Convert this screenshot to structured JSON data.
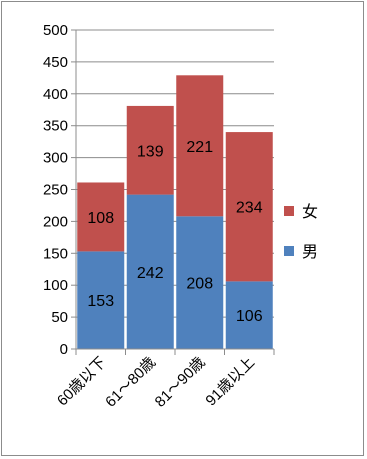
{
  "chart_data": {
    "type": "bar",
    "stacked": true,
    "categories": [
      "60歳以下",
      "61～80歳",
      "81～90歳",
      "91歳以上"
    ],
    "series": [
      {
        "name": "男",
        "color": "#4f81bd",
        "values": [
          153,
          242,
          208,
          106
        ]
      },
      {
        "name": "女",
        "color": "#c0504d",
        "values": [
          108,
          139,
          221,
          234
        ]
      }
    ],
    "ylim": [
      0,
      500
    ],
    "yticks": [
      "0",
      "50",
      "100",
      "150",
      "200",
      "250",
      "300",
      "350",
      "400",
      "450",
      "500"
    ],
    "grid": true,
    "legend": "right",
    "legend_order": [
      "女",
      "男"
    ]
  }
}
